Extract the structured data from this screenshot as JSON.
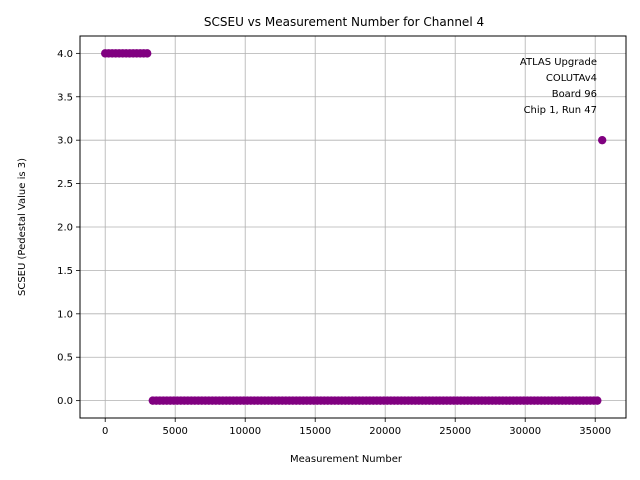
{
  "chart_data": {
    "type": "scatter",
    "title": "SCSEU vs Measurement Number for Channel 4",
    "xlabel": "Measurement Number",
    "ylabel": "SCSEU (Pedestal Value is 3)",
    "xlim": [
      -1800,
      37200
    ],
    "ylim": [
      -0.2,
      4.2
    ],
    "xticks": [
      0,
      5000,
      10000,
      15000,
      20000,
      25000,
      30000,
      35000
    ],
    "yticks": [
      0.0,
      0.5,
      1.0,
      1.5,
      2.0,
      2.5,
      3.0,
      3.5,
      4.0
    ],
    "xtick_labels": [
      "0",
      "5000",
      "10000",
      "15000",
      "20000",
      "25000",
      "30000",
      "35000"
    ],
    "ytick_labels": [
      "0.0",
      "0.5",
      "1.0",
      "1.5",
      "2.0",
      "2.5",
      "3.0",
      "3.5",
      "4.0"
    ],
    "grid": true,
    "marker_color": "#800080",
    "segments": [
      {
        "y": 4.0,
        "x_start": 0,
        "x_end": 3200
      },
      {
        "y": 0.0,
        "x_start": 3400,
        "x_end": 35200
      }
    ],
    "points": [
      {
        "x": 35500,
        "y": 3.0
      }
    ],
    "annotation": [
      "ATLAS Upgrade",
      "COLUTAv4",
      "Board 96",
      "Chip 1, Run 47"
    ]
  }
}
